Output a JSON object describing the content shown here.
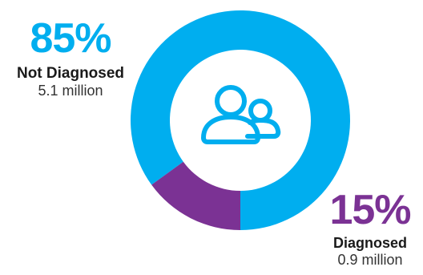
{
  "chart_data": {
    "type": "pie",
    "categories": [
      "Not Diagnosed",
      "Diagnosed"
    ],
    "values": [
      85,
      15
    ],
    "display": [
      "85%",
      "15%"
    ],
    "sublabels": [
      "5.1 million",
      "0.9 million"
    ],
    "colors": [
      "#00aeef",
      "#7b3294"
    ],
    "center_icon": "people-icon"
  }
}
